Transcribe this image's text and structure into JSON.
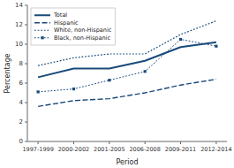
{
  "chart_data": {
    "type": "line",
    "categories": [
      "1997-1999",
      "2000-2002",
      "2001-2005",
      "2006-2008",
      "2009-2011",
      "2012-2014"
    ],
    "series": [
      {
        "name": "Total",
        "line_style": "solid",
        "values": [
          6.6,
          7.5,
          7.5,
          8.3,
          9.7,
          10.2
        ]
      },
      {
        "name": "Hispanic",
        "line_style": "dashed",
        "values": [
          3.6,
          4.2,
          4.4,
          5.0,
          5.8,
          6.4
        ]
      },
      {
        "name": "White, non-Hispanic",
        "line_style": "dotted",
        "values": [
          7.8,
          8.6,
          9.0,
          9.0,
          11.0,
          12.4
        ]
      },
      {
        "name": "Black, non-Hispanic",
        "line_style": "dotted",
        "marker": "square",
        "values": [
          5.1,
          5.4,
          6.3,
          7.2,
          10.5,
          9.8
        ]
      }
    ],
    "color": "#1a4a7a",
    "ylim": [
      0,
      14
    ],
    "yticks": [
      0,
      2,
      4,
      6,
      8,
      10,
      12,
      14
    ],
    "ylabel": "Percentage",
    "xlabel": "Period",
    "legend": "upper left",
    "grid": false
  }
}
